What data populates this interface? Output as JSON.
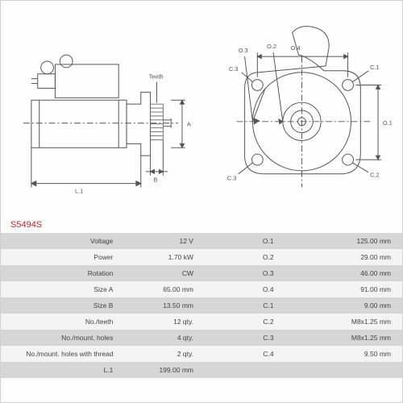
{
  "part_number": "S5494S",
  "colors": {
    "line": "#555555",
    "part_number": "#b5252e",
    "row_dark": "#d6d6d6",
    "row_light": "#f4f4f4",
    "text": "#444444",
    "bg": "#ffffff"
  },
  "diagram": {
    "side_view": {
      "labels": {
        "L1": "L.1",
        "B": "B",
        "A": "A",
        "Teeth": "Teeth"
      }
    },
    "front_view": {
      "labels": {
        "O1": "O.1",
        "O2": "O.2",
        "O3": "O.3",
        "O4": "O.4",
        "C1": "C.1",
        "C2": "C.2",
        "C3": "C.3"
      }
    }
  },
  "specs": {
    "rows": [
      {
        "label_l": "Voltage",
        "val_l": "12 V",
        "label_r": "O.1",
        "val_r": "125.00 mm"
      },
      {
        "label_l": "Power",
        "val_l": "1.70 kW",
        "label_r": "O.2",
        "val_r": "29.00 mm"
      },
      {
        "label_l": "Rotation",
        "val_l": "CW",
        "label_r": "O.3",
        "val_r": "46.00 mm"
      },
      {
        "label_l": "Size A",
        "val_l": "65.00 mm",
        "label_r": "O.4",
        "val_r": "91.00 mm"
      },
      {
        "label_l": "Size B",
        "val_l": "13.50 mm",
        "label_r": "C.1",
        "val_r": "9.00 mm"
      },
      {
        "label_l": "No./teeth",
        "val_l": "12 qty.",
        "label_r": "C.2",
        "val_r": "M8x1.25 mm"
      },
      {
        "label_l": "No./mount. holes",
        "val_l": "4 qty.",
        "label_r": "C.3",
        "val_r": "M8x1.25 mm"
      },
      {
        "label_l": "No./mount. holes with thread",
        "val_l": "2 qty.",
        "label_r": "C.4",
        "val_r": "9.50 mm"
      },
      {
        "label_l": "L.1",
        "val_l": "199.00 mm",
        "label_r": "",
        "val_r": ""
      }
    ]
  }
}
